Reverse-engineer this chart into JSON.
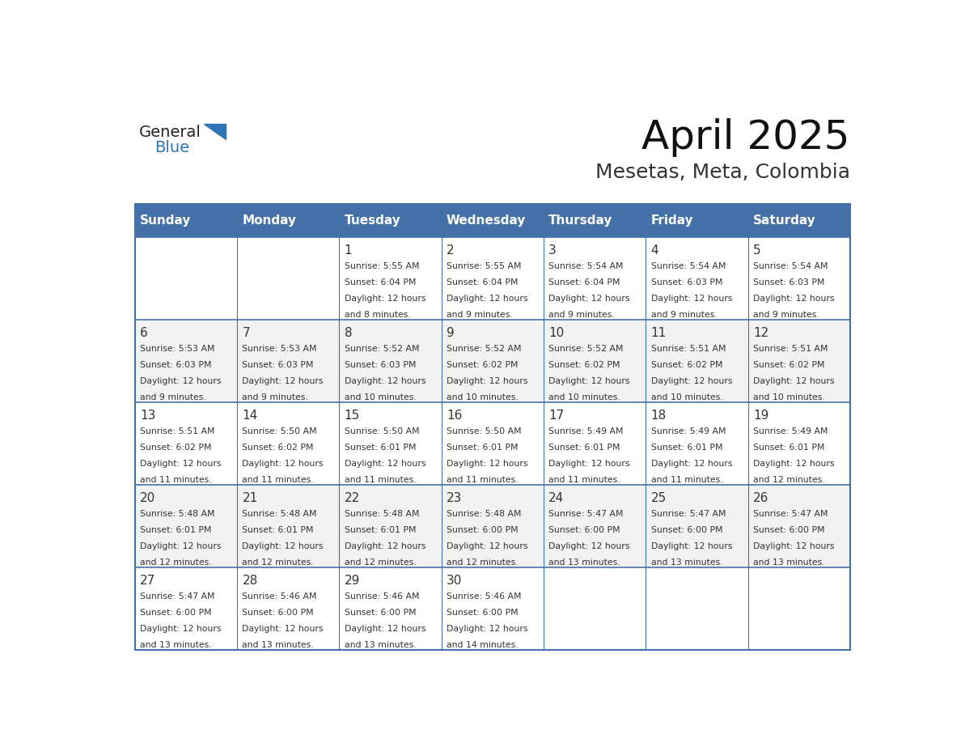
{
  "title": "April 2025",
  "subtitle": "Mesetas, Meta, Colombia",
  "header_color": "#4472A8",
  "header_text_color": "#FFFFFF",
  "day_names": [
    "Sunday",
    "Monday",
    "Tuesday",
    "Wednesday",
    "Thursday",
    "Friday",
    "Saturday"
  ],
  "grid_line_color": "#4472A8",
  "alt_row_color": "#F2F2F2",
  "white_color": "#FFFFFF",
  "text_color": "#333333",
  "logo_general_color": "#222222",
  "logo_blue_color": "#2E75B6",
  "days": [
    {
      "date": 0,
      "col": 0,
      "row": 0,
      "sunrise": "",
      "sunset": "",
      "daylight": ""
    },
    {
      "date": 0,
      "col": 1,
      "row": 0,
      "sunrise": "",
      "sunset": "",
      "daylight": ""
    },
    {
      "date": 1,
      "col": 2,
      "row": 0,
      "sunrise": "5:55 AM",
      "sunset": "6:04 PM",
      "daylight": "12 hours and 8 minutes."
    },
    {
      "date": 2,
      "col": 3,
      "row": 0,
      "sunrise": "5:55 AM",
      "sunset": "6:04 PM",
      "daylight": "12 hours and 9 minutes."
    },
    {
      "date": 3,
      "col": 4,
      "row": 0,
      "sunrise": "5:54 AM",
      "sunset": "6:04 PM",
      "daylight": "12 hours and 9 minutes."
    },
    {
      "date": 4,
      "col": 5,
      "row": 0,
      "sunrise": "5:54 AM",
      "sunset": "6:03 PM",
      "daylight": "12 hours and 9 minutes."
    },
    {
      "date": 5,
      "col": 6,
      "row": 0,
      "sunrise": "5:54 AM",
      "sunset": "6:03 PM",
      "daylight": "12 hours and 9 minutes."
    },
    {
      "date": 6,
      "col": 0,
      "row": 1,
      "sunrise": "5:53 AM",
      "sunset": "6:03 PM",
      "daylight": "12 hours and 9 minutes."
    },
    {
      "date": 7,
      "col": 1,
      "row": 1,
      "sunrise": "5:53 AM",
      "sunset": "6:03 PM",
      "daylight": "12 hours and 9 minutes."
    },
    {
      "date": 8,
      "col": 2,
      "row": 1,
      "sunrise": "5:52 AM",
      "sunset": "6:03 PM",
      "daylight": "12 hours and 10 minutes."
    },
    {
      "date": 9,
      "col": 3,
      "row": 1,
      "sunrise": "5:52 AM",
      "sunset": "6:02 PM",
      "daylight": "12 hours and 10 minutes."
    },
    {
      "date": 10,
      "col": 4,
      "row": 1,
      "sunrise": "5:52 AM",
      "sunset": "6:02 PM",
      "daylight": "12 hours and 10 minutes."
    },
    {
      "date": 11,
      "col": 5,
      "row": 1,
      "sunrise": "5:51 AM",
      "sunset": "6:02 PM",
      "daylight": "12 hours and 10 minutes."
    },
    {
      "date": 12,
      "col": 6,
      "row": 1,
      "sunrise": "5:51 AM",
      "sunset": "6:02 PM",
      "daylight": "12 hours and 10 minutes."
    },
    {
      "date": 13,
      "col": 0,
      "row": 2,
      "sunrise": "5:51 AM",
      "sunset": "6:02 PM",
      "daylight": "12 hours and 11 minutes."
    },
    {
      "date": 14,
      "col": 1,
      "row": 2,
      "sunrise": "5:50 AM",
      "sunset": "6:02 PM",
      "daylight": "12 hours and 11 minutes."
    },
    {
      "date": 15,
      "col": 2,
      "row": 2,
      "sunrise": "5:50 AM",
      "sunset": "6:01 PM",
      "daylight": "12 hours and 11 minutes."
    },
    {
      "date": 16,
      "col": 3,
      "row": 2,
      "sunrise": "5:50 AM",
      "sunset": "6:01 PM",
      "daylight": "12 hours and 11 minutes."
    },
    {
      "date": 17,
      "col": 4,
      "row": 2,
      "sunrise": "5:49 AM",
      "sunset": "6:01 PM",
      "daylight": "12 hours and 11 minutes."
    },
    {
      "date": 18,
      "col": 5,
      "row": 2,
      "sunrise": "5:49 AM",
      "sunset": "6:01 PM",
      "daylight": "12 hours and 11 minutes."
    },
    {
      "date": 19,
      "col": 6,
      "row": 2,
      "sunrise": "5:49 AM",
      "sunset": "6:01 PM",
      "daylight": "12 hours and 12 minutes."
    },
    {
      "date": 20,
      "col": 0,
      "row": 3,
      "sunrise": "5:48 AM",
      "sunset": "6:01 PM",
      "daylight": "12 hours and 12 minutes."
    },
    {
      "date": 21,
      "col": 1,
      "row": 3,
      "sunrise": "5:48 AM",
      "sunset": "6:01 PM",
      "daylight": "12 hours and 12 minutes."
    },
    {
      "date": 22,
      "col": 2,
      "row": 3,
      "sunrise": "5:48 AM",
      "sunset": "6:01 PM",
      "daylight": "12 hours and 12 minutes."
    },
    {
      "date": 23,
      "col": 3,
      "row": 3,
      "sunrise": "5:48 AM",
      "sunset": "6:00 PM",
      "daylight": "12 hours and 12 minutes."
    },
    {
      "date": 24,
      "col": 4,
      "row": 3,
      "sunrise": "5:47 AM",
      "sunset": "6:00 PM",
      "daylight": "12 hours and 13 minutes."
    },
    {
      "date": 25,
      "col": 5,
      "row": 3,
      "sunrise": "5:47 AM",
      "sunset": "6:00 PM",
      "daylight": "12 hours and 13 minutes."
    },
    {
      "date": 26,
      "col": 6,
      "row": 3,
      "sunrise": "5:47 AM",
      "sunset": "6:00 PM",
      "daylight": "12 hours and 13 minutes."
    },
    {
      "date": 27,
      "col": 0,
      "row": 4,
      "sunrise": "5:47 AM",
      "sunset": "6:00 PM",
      "daylight": "12 hours and 13 minutes."
    },
    {
      "date": 28,
      "col": 1,
      "row": 4,
      "sunrise": "5:46 AM",
      "sunset": "6:00 PM",
      "daylight": "12 hours and 13 minutes."
    },
    {
      "date": 29,
      "col": 2,
      "row": 4,
      "sunrise": "5:46 AM",
      "sunset": "6:00 PM",
      "daylight": "12 hours and 13 minutes."
    },
    {
      "date": 30,
      "col": 3,
      "row": 4,
      "sunrise": "5:46 AM",
      "sunset": "6:00 PM",
      "daylight": "12 hours and 14 minutes."
    }
  ]
}
